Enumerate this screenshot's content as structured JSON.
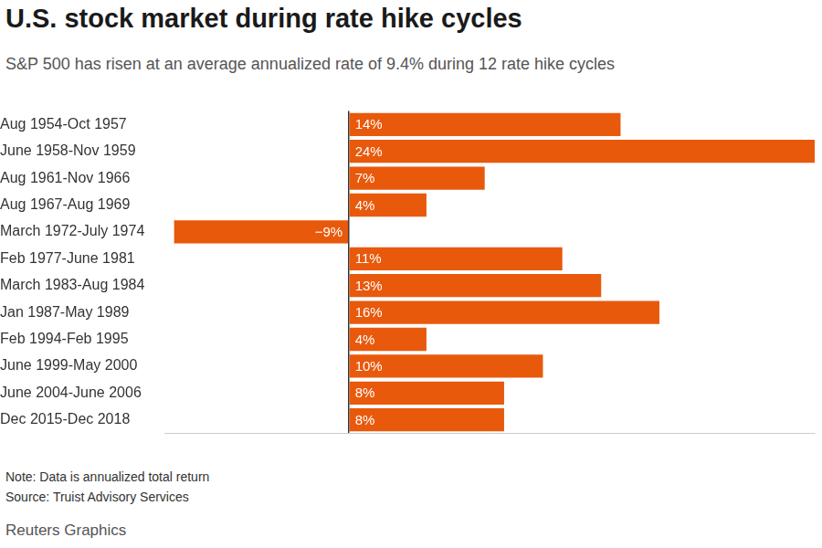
{
  "chart_data": {
    "type": "bar",
    "orientation": "horizontal",
    "title": "U.S. stock market during rate hike cycles",
    "subtitle": "S&P 500 has risen at an average annualized rate of 9.4% during 12 rate hike cycles",
    "categories": [
      "Aug 1954-Oct 1957",
      "June 1958-Nov 1959",
      "Aug 1961-Nov 1966",
      "Aug 1967-Aug 1969",
      "March 1972-July 1974",
      "Feb 1977-June 1981",
      "March 1983-Aug 1984",
      "Jan 1987-May 1989",
      "Feb 1994-Feb 1995",
      "June 1999-May 2000",
      "June 2004-June 2006",
      "Dec 2015-Dec 2018"
    ],
    "values": [
      14,
      24,
      7,
      4,
      -9,
      11,
      13,
      16,
      4,
      10,
      8,
      8
    ],
    "value_labels": [
      "14%",
      "24%",
      "7%",
      "4%",
      "−9%",
      "11%",
      "13%",
      "16%",
      "4%",
      "10%",
      "8%",
      "8%"
    ],
    "color": "#e8590c",
    "xlim": [
      -9.5,
      24
    ],
    "xticks": [
      0
    ],
    "grid": true,
    "data_labels": true,
    "tick_labels": "y",
    "footnotes": [
      "Note: Data is annualized total return",
      "Source: Truist Advisory Services"
    ],
    "credit": "Reuters Graphics"
  }
}
